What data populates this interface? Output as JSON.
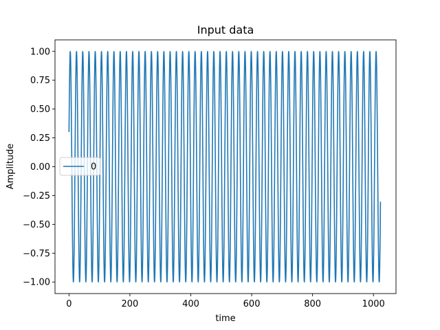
{
  "chart_data": {
    "type": "line",
    "title": "Input data",
    "xlabel": "time",
    "ylabel": "Amplitude",
    "xlim": [
      -46,
      1074
    ],
    "ylim": [
      -1.1,
      1.1
    ],
    "xticks": [
      0,
      200,
      400,
      600,
      800,
      1000
    ],
    "yticks": [
      -1.0,
      -0.75,
      -0.5,
      -0.25,
      0.0,
      0.25,
      0.5,
      0.75,
      1.0
    ],
    "xtick_labels": [
      "0",
      "200",
      "400",
      "600",
      "800",
      "1000"
    ],
    "ytick_labels": [
      "−1.00",
      "−0.75",
      "−0.50",
      "−0.25",
      "0.00",
      "0.25",
      "0.50",
      "0.75",
      "1.00"
    ],
    "grid": false,
    "legend": {
      "position": "center-left"
    },
    "series": [
      {
        "name": "0",
        "color": "#1f77b4",
        "function": "sine",
        "x_start": 0,
        "x_end": 1023,
        "amplitude": 1.0,
        "period": 20.5,
        "start_value": 0.3
      }
    ]
  }
}
